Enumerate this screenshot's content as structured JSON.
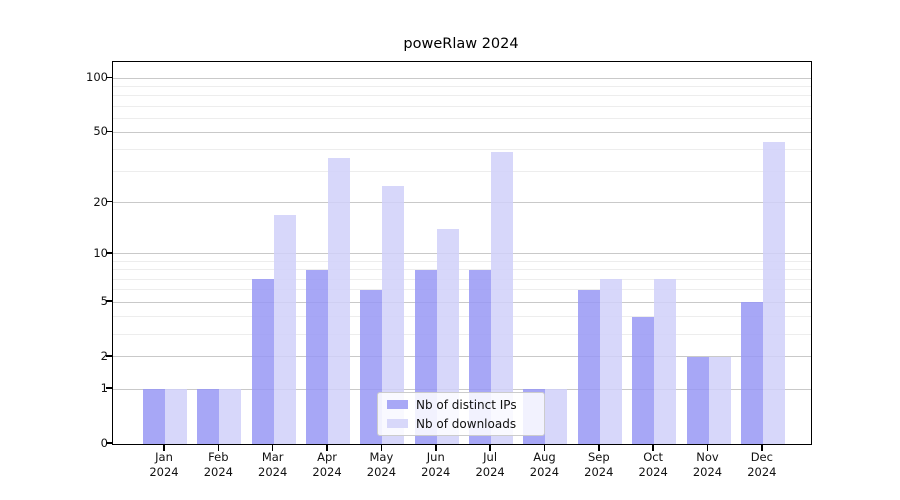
{
  "chart_data": {
    "type": "bar",
    "title": "poweRlaw 2024",
    "categories": [
      "Jan",
      "Feb",
      "Mar",
      "Apr",
      "May",
      "Jun",
      "Jul",
      "Aug",
      "Sep",
      "Oct",
      "Nov",
      "Dec"
    ],
    "year_label": "2024",
    "series": [
      {
        "name": "Nb of distinct IPs",
        "slug": "distinct-ips",
        "color": "#9898f5",
        "legend_color": "#a8a8f6",
        "values": [
          1,
          1,
          7,
          8,
          6,
          8,
          8,
          1,
          6,
          4,
          2,
          5
        ]
      },
      {
        "name": "Nb of downloads",
        "slug": "downloads",
        "color": "#d0d0f9",
        "legend_color": "#d8d8fa",
        "values": [
          1,
          1,
          17,
          36,
          25,
          14,
          39,
          1,
          7,
          7,
          2,
          44
        ]
      }
    ],
    "y_ticks": [
      0,
      1,
      2,
      5,
      10,
      20,
      50,
      100
    ],
    "gridlines_major": [
      1,
      2,
      5,
      10,
      20,
      50,
      100
    ],
    "gridlines_minor": [
      3,
      4,
      6,
      7,
      8,
      9,
      30,
      40,
      60,
      70,
      80,
      90
    ],
    "scale": "log1p",
    "ylim": [
      0,
      123
    ],
    "grid": true,
    "legend_position": "bottom-center",
    "legend_entries": [
      "Nb of distinct IPs",
      "Nb of downloads"
    ]
  },
  "colors": {
    "background": "#ffffff",
    "axis": "#000000",
    "gridline_major": "#c9c9c9",
    "gridline_minor": "#ededed",
    "text": "#111111",
    "bar_distinct_ips": "#a8a8f6",
    "bar_downloads": "#d8d8fa"
  }
}
